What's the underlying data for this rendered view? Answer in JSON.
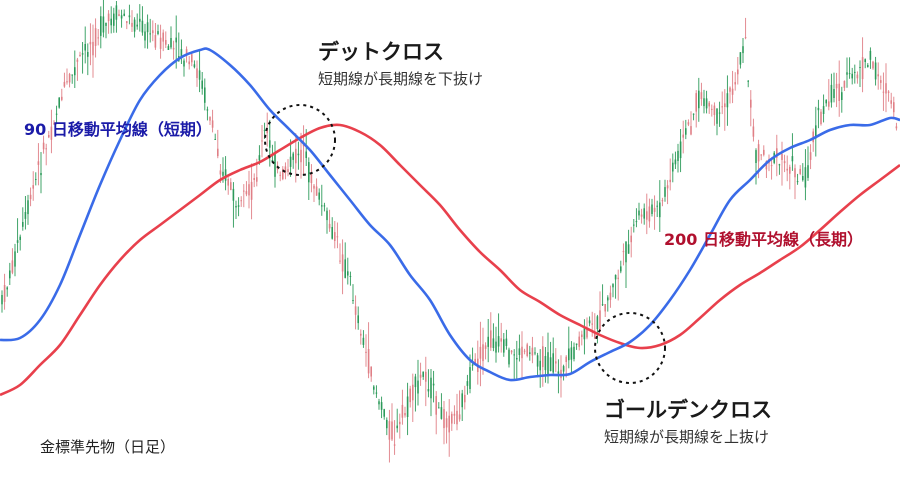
{
  "chart_data": {
    "type": "line",
    "title": "金標準先物（日足）",
    "colors": {
      "up": "#2c9a5a",
      "down": "#e07f86",
      "ma90": "#3a6be8",
      "ma200": "#e8404c",
      "ma90_label": "#1b1ba8",
      "ma200_label": "#b0102e",
      "marker": "#111111"
    },
    "series": [
      {
        "name": "90日移動平均線（短期）",
        "key": "ma90"
      },
      {
        "name": "200日移動平均線（長期）",
        "key": "ma200"
      }
    ],
    "price_path": [
      [
        0,
        310
      ],
      [
        20,
        240
      ],
      [
        40,
        165
      ],
      [
        60,
        100
      ],
      [
        80,
        60
      ],
      [
        100,
        30
      ],
      [
        120,
        15
      ],
      [
        140,
        25
      ],
      [
        160,
        40
      ],
      [
        180,
        55
      ],
      [
        200,
        75
      ],
      [
        220,
        160
      ],
      [
        240,
        215
      ],
      [
        255,
        180
      ],
      [
        265,
        130
      ],
      [
        280,
        180
      ],
      [
        300,
        150
      ],
      [
        320,
        200
      ],
      [
        335,
        240
      ],
      [
        350,
        280
      ],
      [
        365,
        350
      ],
      [
        380,
        405
      ],
      [
        395,
        440
      ],
      [
        410,
        400
      ],
      [
        425,
        370
      ],
      [
        440,
        415
      ],
      [
        455,
        420
      ],
      [
        470,
        380
      ],
      [
        490,
        340
      ],
      [
        510,
        355
      ],
      [
        530,
        350
      ],
      [
        550,
        365
      ],
      [
        565,
        370
      ],
      [
        580,
        340
      ],
      [
        600,
        320
      ],
      [
        620,
        270
      ],
      [
        640,
        215
      ],
      [
        660,
        210
      ],
      [
        680,
        150
      ],
      [
        700,
        95
      ],
      [
        720,
        120
      ],
      [
        735,
        80
      ],
      [
        745,
        40
      ],
      [
        755,
        150
      ],
      [
        770,
        160
      ],
      [
        790,
        165
      ],
      [
        805,
        180
      ],
      [
        815,
        130
      ],
      [
        830,
        95
      ],
      [
        850,
        80
      ],
      [
        870,
        60
      ],
      [
        890,
        95
      ],
      [
        900,
        140
      ]
    ],
    "ma90_path": [
      [
        0,
        340
      ],
      [
        20,
        338
      ],
      [
        40,
        320
      ],
      [
        60,
        285
      ],
      [
        80,
        235
      ],
      [
        100,
        185
      ],
      [
        120,
        140
      ],
      [
        140,
        100
      ],
      [
        160,
        75
      ],
      [
        180,
        58
      ],
      [
        200,
        50
      ],
      [
        210,
        50
      ],
      [
        230,
        65
      ],
      [
        250,
        85
      ],
      [
        270,
        110
      ],
      [
        290,
        130
      ],
      [
        310,
        150
      ],
      [
        330,
        175
      ],
      [
        350,
        200
      ],
      [
        370,
        225
      ],
      [
        390,
        245
      ],
      [
        410,
        275
      ],
      [
        430,
        300
      ],
      [
        450,
        335
      ],
      [
        470,
        360
      ],
      [
        490,
        372
      ],
      [
        510,
        380
      ],
      [
        530,
        377
      ],
      [
        550,
        375
      ],
      [
        570,
        374
      ],
      [
        590,
        362
      ],
      [
        610,
        352
      ],
      [
        630,
        342
      ],
      [
        650,
        325
      ],
      [
        670,
        300
      ],
      [
        690,
        270
      ],
      [
        710,
        235
      ],
      [
        730,
        200
      ],
      [
        750,
        180
      ],
      [
        770,
        160
      ],
      [
        790,
        148
      ],
      [
        810,
        140
      ],
      [
        830,
        130
      ],
      [
        850,
        125
      ],
      [
        870,
        125
      ],
      [
        890,
        118
      ],
      [
        900,
        120
      ]
    ],
    "ma200_path": [
      [
        0,
        395
      ],
      [
        20,
        385
      ],
      [
        40,
        365
      ],
      [
        60,
        345
      ],
      [
        80,
        315
      ],
      [
        100,
        285
      ],
      [
        120,
        260
      ],
      [
        140,
        240
      ],
      [
        160,
        225
      ],
      [
        180,
        210
      ],
      [
        200,
        195
      ],
      [
        220,
        180
      ],
      [
        240,
        170
      ],
      [
        260,
        162
      ],
      [
        280,
        150
      ],
      [
        300,
        138
      ],
      [
        320,
        128
      ],
      [
        340,
        125
      ],
      [
        360,
        132
      ],
      [
        380,
        145
      ],
      [
        400,
        165
      ],
      [
        420,
        185
      ],
      [
        440,
        205
      ],
      [
        460,
        230
      ],
      [
        480,
        252
      ],
      [
        500,
        270
      ],
      [
        520,
        290
      ],
      [
        540,
        302
      ],
      [
        560,
        315
      ],
      [
        580,
        325
      ],
      [
        600,
        335
      ],
      [
        620,
        343
      ],
      [
        640,
        348
      ],
      [
        660,
        345
      ],
      [
        680,
        335
      ],
      [
        700,
        318
      ],
      [
        720,
        300
      ],
      [
        740,
        285
      ],
      [
        760,
        273
      ],
      [
        780,
        260
      ],
      [
        800,
        247
      ],
      [
        820,
        230
      ],
      [
        840,
        212
      ],
      [
        860,
        195
      ],
      [
        880,
        180
      ],
      [
        900,
        165
      ]
    ],
    "markers": [
      {
        "name": "dead-cross",
        "cx": 300,
        "cy": 140,
        "r": 35
      },
      {
        "name": "golden-cross",
        "cx": 630,
        "cy": 348,
        "r": 35
      }
    ],
    "annotations": {
      "dead_cross_title": "デットクロス",
      "dead_cross_sub": "短期線が長期線を下抜け",
      "ma90_label": "90 日移動平均線（短期）",
      "ma200_label": "200 日移動平均線（長期）",
      "golden_cross_title": "ゴールデンクロス",
      "golden_cross_sub": "短期線が長期線を上抜け",
      "instrument": "金標準先物（日足）"
    }
  }
}
